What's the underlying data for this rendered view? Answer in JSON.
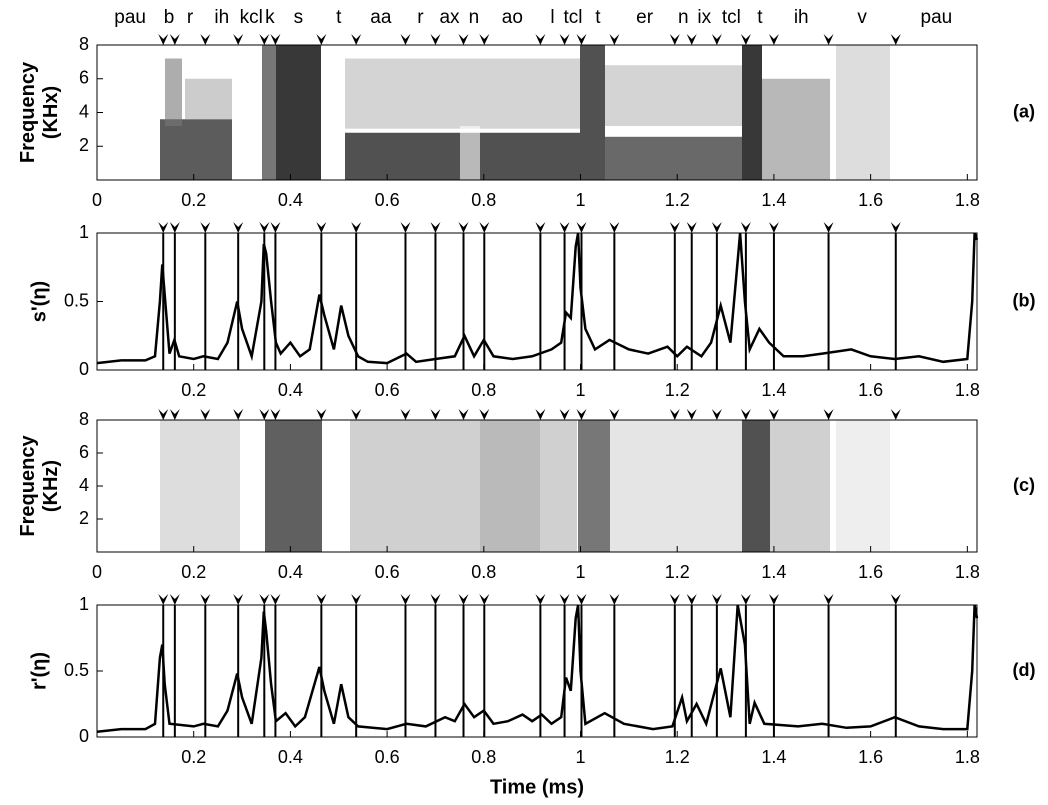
{
  "chart_data": [
    {
      "type": "spectrogram",
      "panel_label": "(a)",
      "ylabel": [
        "Frequency",
        "(KHx)"
      ],
      "phones": [
        "pau",
        "b",
        "r",
        "ih",
        "kcl",
        "k",
        "s",
        "t",
        "aa",
        "r",
        "ax",
        "n",
        "ao",
        "l",
        "tcl",
        "t",
        "er",
        "n",
        "ix",
        "tcl",
        "t",
        "ih",
        "v",
        "pau"
      ],
      "boundaries": [
        0.137,
        0.161,
        0.224,
        0.292,
        0.346,
        0.369,
        0.464,
        0.536,
        0.638,
        0.7,
        0.758,
        0.801,
        0.917,
        0.967,
        1.002,
        1.07,
        1.195,
        1.23,
        1.282,
        1.342,
        1.4,
        1.513,
        1.652
      ],
      "xlim": [
        0,
        1.82
      ],
      "xticks": [
        0,
        0.2,
        0.4,
        0.6,
        0.8,
        1,
        1.2,
        1.4,
        1.6,
        1.8
      ],
      "ylim": [
        0,
        8
      ],
      "yticks": [
        2,
        4,
        6,
        8
      ]
    },
    {
      "type": "line",
      "panel_label": "(b)",
      "ylabel": [
        "s'(η)"
      ],
      "xlim": [
        0,
        1.82
      ],
      "xticks": [
        0.2,
        0.4,
        0.6,
        0.8,
        1,
        1.2,
        1.4,
        1.6,
        1.8
      ],
      "ylim": [
        0,
        1
      ],
      "yticks": [
        0,
        0.5,
        1
      ],
      "color": "#000000",
      "x": [
        0,
        0.05,
        0.1,
        0.12,
        0.13,
        0.135,
        0.14,
        0.15,
        0.16,
        0.17,
        0.2,
        0.22,
        0.25,
        0.27,
        0.29,
        0.3,
        0.32,
        0.34,
        0.345,
        0.35,
        0.36,
        0.37,
        0.38,
        0.4,
        0.42,
        0.44,
        0.46,
        0.47,
        0.49,
        0.505,
        0.52,
        0.54,
        0.56,
        0.6,
        0.64,
        0.66,
        0.7,
        0.74,
        0.76,
        0.78,
        0.8,
        0.82,
        0.86,
        0.9,
        0.94,
        0.96,
        0.97,
        0.98,
        0.99,
        0.995,
        1,
        1.01,
        1.03,
        1.06,
        1.1,
        1.14,
        1.18,
        1.2,
        1.22,
        1.25,
        1.27,
        1.29,
        1.31,
        1.325,
        1.33,
        1.34,
        1.35,
        1.37,
        1.39,
        1.42,
        1.46,
        1.5,
        1.56,
        1.6,
        1.65,
        1.7,
        1.75,
        1.8,
        1.81,
        1.815,
        1.82
      ],
      "values": [
        0.05,
        0.07,
        0.07,
        0.1,
        0.5,
        0.77,
        0.55,
        0.12,
        0.22,
        0.1,
        0.08,
        0.1,
        0.08,
        0.2,
        0.5,
        0.3,
        0.1,
        0.5,
        0.92,
        0.85,
        0.5,
        0.2,
        0.12,
        0.2,
        0.1,
        0.15,
        0.55,
        0.4,
        0.15,
        0.47,
        0.25,
        0.1,
        0.06,
        0.05,
        0.12,
        0.06,
        0.08,
        0.1,
        0.25,
        0.1,
        0.22,
        0.1,
        0.08,
        0.1,
        0.15,
        0.2,
        0.42,
        0.38,
        0.9,
        1,
        0.6,
        0.3,
        0.15,
        0.22,
        0.15,
        0.12,
        0.17,
        0.1,
        0.17,
        0.1,
        0.2,
        0.47,
        0.2,
        0.8,
        1,
        0.5,
        0.15,
        0.3,
        0.2,
        0.1,
        0.1,
        0.12,
        0.15,
        0.1,
        0.08,
        0.1,
        0.06,
        0.08,
        0.5,
        1,
        0.95
      ]
    },
    {
      "type": "spectrogram",
      "panel_label": "(c)",
      "ylabel": [
        "Frequency",
        "(KHz)"
      ],
      "xlim": [
        0,
        1.82
      ],
      "xticks": [
        0,
        0.2,
        0.4,
        0.6,
        0.8,
        1,
        1.2,
        1.4,
        1.6,
        1.8
      ],
      "ylim": [
        0,
        8
      ],
      "yticks": [
        2,
        4,
        6,
        8
      ]
    },
    {
      "type": "line",
      "panel_label": "(d)",
      "ylabel": [
        "r'(η)"
      ],
      "xlabel": "Time (ms)",
      "xlim": [
        0,
        1.82
      ],
      "xticks": [
        0.2,
        0.4,
        0.6,
        0.8,
        1,
        1.2,
        1.4,
        1.6,
        1.8
      ],
      "ylim": [
        0,
        1
      ],
      "yticks": [
        0,
        0.5,
        1
      ],
      "color": "#000000",
      "x": [
        0,
        0.05,
        0.1,
        0.12,
        0.13,
        0.135,
        0.14,
        0.15,
        0.2,
        0.22,
        0.25,
        0.27,
        0.29,
        0.3,
        0.32,
        0.34,
        0.345,
        0.35,
        0.36,
        0.37,
        0.39,
        0.41,
        0.43,
        0.46,
        0.47,
        0.49,
        0.505,
        0.52,
        0.54,
        0.6,
        0.64,
        0.68,
        0.72,
        0.74,
        0.76,
        0.78,
        0.8,
        0.82,
        0.85,
        0.88,
        0.9,
        0.92,
        0.94,
        0.96,
        0.97,
        0.98,
        0.99,
        0.995,
        1,
        1.01,
        1.05,
        1.09,
        1.15,
        1.19,
        1.21,
        1.22,
        1.24,
        1.26,
        1.29,
        1.31,
        1.325,
        1.34,
        1.35,
        1.36,
        1.38,
        1.45,
        1.5,
        1.55,
        1.6,
        1.65,
        1.7,
        1.75,
        1.8,
        1.81,
        1.815,
        1.82
      ],
      "values": [
        0.04,
        0.06,
        0.06,
        0.1,
        0.6,
        0.7,
        0.4,
        0.1,
        0.08,
        0.1,
        0.08,
        0.2,
        0.48,
        0.3,
        0.1,
        0.6,
        0.95,
        0.8,
        0.4,
        0.12,
        0.18,
        0.08,
        0.15,
        0.53,
        0.35,
        0.1,
        0.4,
        0.15,
        0.08,
        0.06,
        0.1,
        0.08,
        0.15,
        0.12,
        0.25,
        0.15,
        0.2,
        0.1,
        0.12,
        0.17,
        0.12,
        0.17,
        0.1,
        0.15,
        0.45,
        0.35,
        0.9,
        1,
        0.5,
        0.1,
        0.18,
        0.1,
        0.06,
        0.08,
        0.3,
        0.12,
        0.25,
        0.1,
        0.52,
        0.15,
        1,
        0.7,
        0.1,
        0.26,
        0.1,
        0.08,
        0.1,
        0.07,
        0.08,
        0.15,
        0.08,
        0.06,
        0.06,
        0.5,
        1,
        0.9
      ]
    }
  ]
}
